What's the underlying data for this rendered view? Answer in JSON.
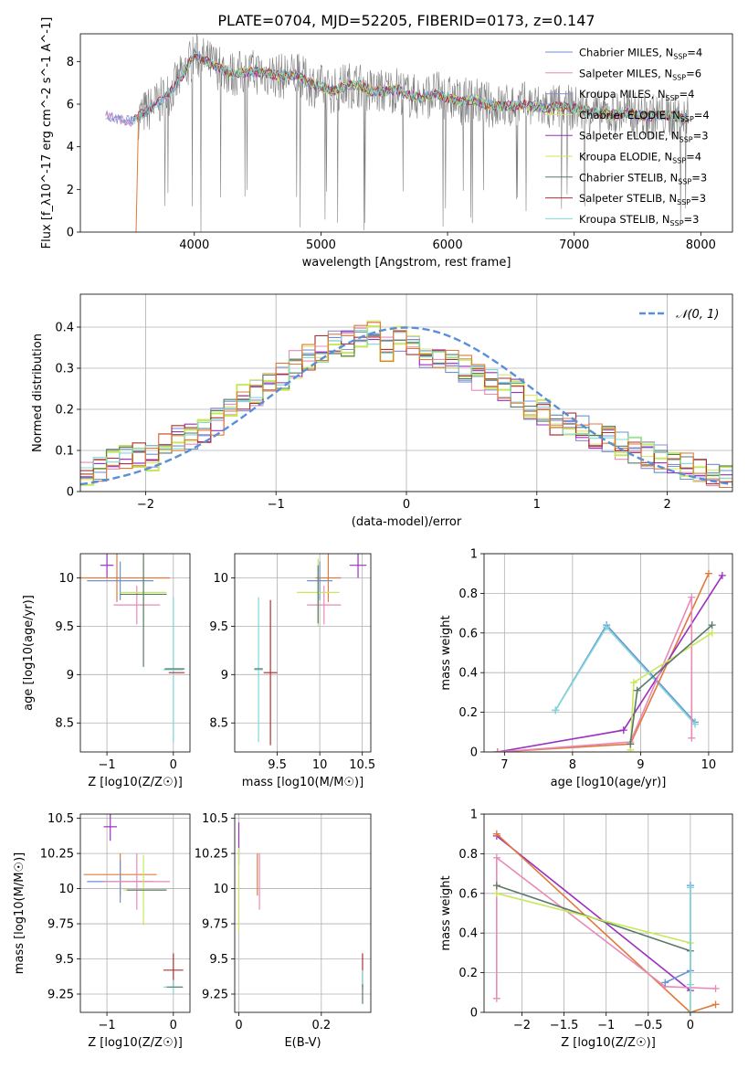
{
  "figure": {
    "title": "PLATE=0704, MJD=52205, FIBERID=0173, z=0.147"
  },
  "colors": {
    "grid": "#b0b0b0",
    "spectrum": "#808080",
    "chabrier_miles": "#6a93d3",
    "salpeter_miles": "#e88ab8",
    "kroupa_miles": "#8a8fd8",
    "chabrier_elodie": "#d9e86a",
    "salpeter_elodie": "#9b2fc0",
    "kroupa_elodie": "#c8e85a",
    "chabrier_stelib": "#5a7a68",
    "salpeter_stelib": "#b03030",
    "kroupa_stelib": "#80d8d8",
    "orange": "#e07a3a",
    "normal": "#5a8fd8"
  },
  "chart_data": [
    {
      "id": "spectrum",
      "type": "line",
      "xlabel": "wavelength [Angstrom, rest frame]",
      "ylabel": "Flux [f_λ10^-17 erg cm^-2 s^-1 A^-1]",
      "xlim": [
        3100,
        8250
      ],
      "ylim": [
        0,
        9.3
      ],
      "xticks": [
        4000,
        5000,
        6000,
        7000,
        8000
      ],
      "yticks": [
        0,
        2,
        4,
        6,
        8
      ],
      "grid": false,
      "legend": {
        "placement": "top-right",
        "entries": [
          {
            "label": "Chabrier MILES, N",
            "sub": "SSP",
            "tail": "=4"
          },
          {
            "label": "Salpeter MILES, N",
            "sub": "SSP",
            "tail": "=6"
          },
          {
            "label": "Kroupa MILES, N",
            "sub": "SSP",
            "tail": "=4"
          },
          {
            "label": "Chabrier ELODIE, N",
            "sub": "SSP",
            "tail": "=4"
          },
          {
            "label": "Salpeter ELODIE, N",
            "sub": "SSP",
            "tail": "=3"
          },
          {
            "label": "Kroupa ELODIE, N",
            "sub": "SSP",
            "tail": "=4"
          },
          {
            "label": "Chabrier STELIB, N",
            "sub": "SSP",
            "tail": "=3"
          },
          {
            "label": "Salpeter STELIB, N",
            "sub": "SSP",
            "tail": "=3"
          },
          {
            "label": "Kroupa STELIB, N",
            "sub": "SSP",
            "tail": "=3"
          }
        ]
      },
      "model_curve": {
        "x": [
          3300,
          3400,
          3500,
          3600,
          3700,
          3800,
          3900,
          4000,
          4100,
          4200,
          4300,
          4400,
          4500,
          4600,
          4700,
          4800,
          4900,
          5000,
          5100,
          5200,
          5300,
          5400,
          5500,
          5600,
          5700,
          5800,
          5900,
          6000,
          6100,
          6200,
          6300,
          6400,
          6500,
          6600,
          6700,
          6800,
          6900,
          7000,
          7100,
          7200,
          7300,
          7400,
          7500,
          7600,
          7700,
          7800,
          7900
        ],
        "y": [
          5.5,
          5.3,
          5.2,
          5.6,
          6.0,
          6.5,
          7.3,
          8.3,
          8.0,
          7.7,
          7.4,
          7.5,
          7.5,
          7.4,
          7.3,
          7.4,
          7.0,
          6.8,
          6.6,
          6.9,
          6.9,
          6.6,
          6.6,
          6.7,
          6.4,
          6.3,
          6.5,
          6.3,
          6.1,
          6.2,
          6.0,
          5.9,
          5.9,
          6.0,
          5.9,
          5.8,
          5.9,
          5.8,
          5.7,
          5.6,
          5.5,
          5.6,
          5.5,
          5.4,
          5.5,
          5.4,
          5.3
        ]
      }
    },
    {
      "id": "residuals",
      "type": "line",
      "xlabel": "(data-model)/error",
      "ylabel": "Normed distribution",
      "xlim": [
        -2.5,
        2.5
      ],
      "ylim": [
        0,
        0.48
      ],
      "xticks": [
        -2,
        -1,
        0,
        1,
        2
      ],
      "yticks": [
        0.0,
        0.1,
        0.2,
        0.3,
        0.4
      ],
      "grid": true,
      "legend": {
        "placement": "top-right",
        "entries": [
          {
            "label": "𝒩(0, 1)"
          }
        ]
      },
      "histogram_bins": [
        -2.5,
        -2.4,
        -2.3,
        -2.2,
        -2.1,
        -2.0,
        -1.9,
        -1.8,
        -1.7,
        -1.6,
        -1.5,
        -1.4,
        -1.3,
        -1.2,
        -1.1,
        -1.0,
        -0.9,
        -0.8,
        -0.7,
        -0.6,
        -0.5,
        -0.4,
        -0.3,
        -0.2,
        -0.1,
        0.0,
        0.1,
        0.2,
        0.3,
        0.4,
        0.5,
        0.6,
        0.7,
        0.8,
        0.9,
        1.0,
        1.1,
        1.2,
        1.3,
        1.4,
        1.5,
        1.6,
        1.7,
        1.8,
        1.9,
        2.0,
        2.1,
        2.2,
        2.3,
        2.4,
        2.5
      ],
      "histogram_mean": [
        0.04,
        0.06,
        0.08,
        0.09,
        0.09,
        0.08,
        0.11,
        0.13,
        0.13,
        0.15,
        0.17,
        0.2,
        0.23,
        0.24,
        0.26,
        0.28,
        0.31,
        0.33,
        0.35,
        0.37,
        0.36,
        0.38,
        0.39,
        0.35,
        0.37,
        0.36,
        0.33,
        0.32,
        0.31,
        0.3,
        0.28,
        0.27,
        0.25,
        0.24,
        0.21,
        0.19,
        0.17,
        0.16,
        0.15,
        0.13,
        0.13,
        0.11,
        0.1,
        0.09,
        0.08,
        0.07,
        0.06,
        0.05,
        0.04,
        0.03
      ]
    },
    {
      "id": "age_vs_Z",
      "type": "scatter",
      "xlabel": "Z [log10(Z/Z☉)]",
      "ylabel": "age [log10(age/yr)]",
      "xlim": [
        -1.4,
        0.25
      ],
      "ylim": [
        8.2,
        10.25
      ],
      "xticks": [
        -1,
        0
      ],
      "yticks": [
        8.5,
        9.0,
        9.5,
        10.0
      ],
      "grid": true,
      "points": [
        {
          "series": "salpeter_elodie",
          "x": -1.0,
          "y": 10.13,
          "xerr": 0.1,
          "yerr": 0.13
        },
        {
          "series": "orange",
          "x": -0.85,
          "y": 10.0,
          "xerr": 0.8,
          "yerr": 0.25
        },
        {
          "series": "chabrier_miles",
          "x": -0.8,
          "y": 9.97,
          "xerr": 0.5,
          "yerr": 0.2
        },
        {
          "series": "salpeter_miles",
          "x": -0.55,
          "y": 9.72,
          "xerr": 0.35,
          "yerr": 0.2
        },
        {
          "series": "kroupa_elodie",
          "x": -0.45,
          "y": 9.85,
          "xerr": 0.35,
          "yerr": 0.35
        },
        {
          "series": "chabrier_stelib",
          "x": -0.45,
          "y": 9.83,
          "xerr": 0.35,
          "yerr": 0.75
        },
        {
          "series": "kroupa_stelib",
          "x": 0.0,
          "y": 9.05,
          "xerr": 0.15,
          "yerr": 0.75
        },
        {
          "series": "salpeter_stelib",
          "x": 0.05,
          "y": 9.02,
          "xerr": 0.12,
          "yerr": 0.0
        },
        {
          "series": "chabrier_stelib",
          "x": 0.02,
          "y": 9.06,
          "xerr": 0.15,
          "yerr": 0.0
        },
        {
          "series": "kroupa_elodie",
          "x": 0.0,
          "y": 9.85,
          "xerr": 0.0,
          "yerr": 0.0
        }
      ]
    },
    {
      "id": "age_vs_mass",
      "type": "scatter",
      "xlabel": "mass [log10(M/M☉)]",
      "ylabel": "",
      "xlim": [
        9.0,
        10.6
      ],
      "ylim": [
        8.2,
        10.25
      ],
      "xticks": [
        9.5,
        10.0,
        10.5
      ],
      "yticks": [
        8.5,
        9.0,
        9.5,
        10.0
      ],
      "grid": true,
      "points": [
        {
          "series": "salpeter_elodie",
          "x": 10.45,
          "y": 10.13,
          "xerr": 0.1,
          "yerr": 0.13
        },
        {
          "series": "orange",
          "x": 10.1,
          "y": 10.0,
          "xerr": 0.15,
          "yerr": 0.25
        },
        {
          "series": "chabrier_miles",
          "x": 10.0,
          "y": 9.97,
          "xerr": 0.15,
          "yerr": 0.2
        },
        {
          "series": "salpeter_miles",
          "x": 10.05,
          "y": 9.72,
          "xerr": 0.2,
          "yerr": 0.2
        },
        {
          "series": "kroupa_elodie",
          "x": 9.98,
          "y": 9.85,
          "xerr": 0.25,
          "yerr": 0.35
        },
        {
          "series": "chabrier_stelib",
          "x": 9.98,
          "y": 9.83,
          "xerr": 0.0,
          "yerr": 0.3
        },
        {
          "series": "kroupa_stelib",
          "x": 9.28,
          "y": 9.05,
          "xerr": 0.05,
          "yerr": 0.75
        },
        {
          "series": "salpeter_stelib",
          "x": 9.42,
          "y": 9.02,
          "xerr": 0.08,
          "yerr": 0.75
        },
        {
          "series": "chabrier_stelib",
          "x": 9.28,
          "y": 9.06,
          "xerr": 0.05,
          "yerr": 0.0
        }
      ]
    },
    {
      "id": "weight_vs_age",
      "type": "line",
      "xlabel": "age [log10(age/yr)]",
      "ylabel": "mass weight",
      "xlim": [
        6.7,
        10.35
      ],
      "ylim": [
        0,
        1.0
      ],
      "xticks": [
        7,
        8,
        9,
        10
      ],
      "yticks": [
        0.0,
        0.2,
        0.4,
        0.6,
        0.8,
        1.0
      ],
      "grid": true,
      "series": [
        {
          "key": "chabrier_miles",
          "points": [
            [
              7.75,
              0.21
            ],
            [
              8.5,
              0.64
            ],
            [
              9.8,
              0.15
            ]
          ]
        },
        {
          "key": "kroupa_stelib",
          "points": [
            [
              7.75,
              0.21
            ],
            [
              8.5,
              0.63
            ],
            [
              9.8,
              0.14
            ]
          ]
        },
        {
          "key": "orange",
          "points": [
            [
              6.9,
              0.0
            ],
            [
              8.85,
              0.04
            ],
            [
              10.0,
              0.9
            ]
          ]
        },
        {
          "key": "salpeter_elodie",
          "points": [
            [
              6.9,
              0.0
            ],
            [
              8.75,
              0.11
            ],
            [
              10.2,
              0.89
            ]
          ]
        },
        {
          "key": "salpeter_miles",
          "points": [
            [
              6.9,
              0.0
            ],
            [
              8.85,
              0.05
            ],
            [
              9.75,
              0.78
            ],
            [
              9.75,
              0.07
            ]
          ]
        },
        {
          "key": "kroupa_elodie",
          "points": [
            [
              8.85,
              0.01
            ],
            [
              8.9,
              0.35
            ],
            [
              10.05,
              0.6
            ]
          ]
        },
        {
          "key": "chabrier_stelib",
          "points": [
            [
              8.85,
              0.04
            ],
            [
              8.95,
              0.31
            ],
            [
              10.05,
              0.64
            ]
          ]
        }
      ]
    },
    {
      "id": "mass_vs_Z",
      "type": "scatter",
      "xlabel": "Z [log10(Z/Z☉)]",
      "ylabel": "mass [log10(M/M☉)]",
      "xlim": [
        -1.4,
        0.25
      ],
      "ylim": [
        9.12,
        10.53
      ],
      "xticks": [
        -1,
        0
      ],
      "yticks": [
        9.25,
        9.5,
        9.75,
        10.0,
        10.25,
        10.5
      ],
      "grid": true,
      "points": [
        {
          "series": "salpeter_elodie",
          "x": -0.95,
          "y": 10.44,
          "xerr": 0.1,
          "yerr": 0.1
        },
        {
          "series": "orange",
          "x": -0.8,
          "y": 10.1,
          "xerr": 0.55,
          "yerr": 0.15
        },
        {
          "series": "chabrier_miles",
          "x": -0.8,
          "y": 10.05,
          "xerr": 0.5,
          "yerr": 0.15
        },
        {
          "series": "salpeter_miles",
          "x": -0.55,
          "y": 10.05,
          "xerr": 0.5,
          "yerr": 0.2
        },
        {
          "series": "kroupa_elodie",
          "x": -0.45,
          "y": 9.99,
          "xerr": 0.3,
          "yerr": 0.25
        },
        {
          "series": "chabrier_stelib",
          "x": -0.4,
          "y": 9.99,
          "xerr": 0.3,
          "yerr": 0.0
        },
        {
          "series": "salpeter_stelib",
          "x": 0.0,
          "y": 9.42,
          "xerr": 0.15,
          "yerr": 0.12
        },
        {
          "series": "kroupa_stelib",
          "x": 0.0,
          "y": 9.3,
          "xerr": 0.15,
          "yerr": 0.05
        },
        {
          "series": "chabrier_stelib",
          "x": 0.02,
          "y": 9.3,
          "xerr": 0.12,
          "yerr": 0.0
        }
      ]
    },
    {
      "id": "mass_vs_ebv",
      "type": "scatter",
      "xlabel": "E(B-V)",
      "ylabel": "",
      "xlim": [
        -0.01,
        0.32
      ],
      "ylim": [
        9.12,
        10.53
      ],
      "xticks": [
        0.0,
        0.2
      ],
      "yticks": [
        9.25,
        9.5,
        9.75,
        10.0,
        10.25,
        10.5
      ],
      "grid": true,
      "points": [
        {
          "series": "salpeter_elodie",
          "x": 0.0,
          "y": 10.32,
          "xerr": 0.0,
          "yerr": 0.15
        },
        {
          "series": "kroupa_elodie",
          "x": 0.0,
          "y": 9.99,
          "xerr": 0.0,
          "yerr": 0.3
        },
        {
          "series": "orange",
          "x": 0.045,
          "y": 10.1,
          "xerr": 0.0,
          "yerr": 0.15
        },
        {
          "series": "salpeter_miles",
          "x": 0.05,
          "y": 10.05,
          "xerr": 0.0,
          "yerr": 0.2
        },
        {
          "series": "salpeter_stelib",
          "x": 0.3,
          "y": 9.42,
          "xerr": 0.0,
          "yerr": 0.12
        },
        {
          "series": "kroupa_stelib",
          "x": 0.3,
          "y": 9.35,
          "xerr": 0.0,
          "yerr": 0.07
        },
        {
          "series": "chabrier_stelib",
          "x": 0.3,
          "y": 9.25,
          "xerr": 0.0,
          "yerr": 0.07
        }
      ]
    },
    {
      "id": "weight_vs_Z",
      "type": "line",
      "xlabel": "Z [log10(Z/Z☉)]",
      "ylabel": "mass weight",
      "xlim": [
        -2.45,
        0.5
      ],
      "ylim": [
        0,
        1.0
      ],
      "xticks": [
        -2.0,
        -1.5,
        -1.0,
        -0.5,
        0.0
      ],
      "yticks": [
        0.0,
        0.2,
        0.4,
        0.6,
        0.8,
        1.0
      ],
      "grid": true,
      "series": [
        {
          "key": "salpeter_elodie",
          "points": [
            [
              -2.3,
              0.89
            ],
            [
              0.0,
              0.11
            ]
          ]
        },
        {
          "key": "orange",
          "points": [
            [
              -2.3,
              0.9
            ],
            [
              0.0,
              0.0
            ],
            [
              0.3,
              0.04
            ]
          ]
        },
        {
          "key": "salpeter_miles",
          "points": [
            [
              -2.3,
              0.07
            ],
            [
              -2.3,
              0.78
            ],
            [
              -0.3,
              0.13
            ],
            [
              0.3,
              0.12
            ]
          ]
        },
        {
          "key": "chabrier_stelib",
          "points": [
            [
              -2.3,
              0.64
            ],
            [
              0.0,
              0.31
            ]
          ]
        },
        {
          "key": "kroupa_elodie",
          "points": [
            [
              -2.3,
              0.6
            ],
            [
              0.0,
              0.35
            ],
            [
              0.0,
              0.0
            ]
          ]
        },
        {
          "key": "chabrier_miles",
          "points": [
            [
              -0.3,
              0.15
            ],
            [
              0.0,
              0.21
            ],
            [
              0.0,
              0.64
            ]
          ]
        },
        {
          "key": "kroupa_stelib",
          "points": [
            [
              0.0,
              0.0
            ],
            [
              0.0,
              0.63
            ],
            [
              0.0,
              0.14
            ]
          ]
        }
      ]
    }
  ]
}
